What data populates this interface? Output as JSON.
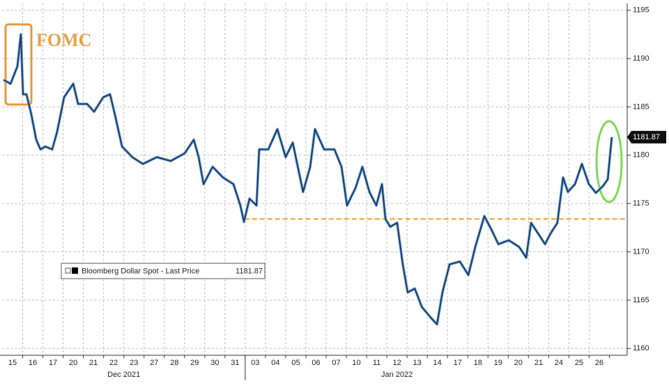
{
  "chart_data": {
    "type": "line",
    "annotation": "FOMC",
    "categories": [
      "15",
      "16",
      "17",
      "20",
      "21",
      "22",
      "23",
      "27",
      "28",
      "29",
      "30",
      "31",
      "03",
      "04",
      "05",
      "06",
      "07",
      "10",
      "11",
      "12",
      "13",
      "14",
      "17",
      "18",
      "19",
      "20",
      "21",
      "24",
      "25",
      "26"
    ],
    "months": [
      "Dec 2021",
      "Jan 2022"
    ],
    "xlim": [
      0,
      30.88
    ],
    "ylim": [
      1159.3,
      1195.7
    ],
    "yticks": [
      1160,
      1165,
      1170,
      1175,
      1180,
      1185,
      1190,
      1195
    ],
    "grid": true,
    "last_price": {
      "value": 1181.87,
      "label": "1181.87"
    },
    "reference_line": {
      "value": 1173.4,
      "from_x": 11.96,
      "color": "#f0a020"
    },
    "series": [
      {
        "name": "Bloomberg Dollar Spot - Last Price",
        "color": "#1c3a66",
        "x": [
          0.05,
          0.4,
          0.74,
          0.91,
          1.02,
          1.19,
          1.43,
          1.67,
          1.88,
          2.12,
          2.46,
          2.7,
          3.05,
          3.5,
          3.74,
          4.19,
          4.53,
          4.98,
          5.32,
          5.56,
          5.91,
          6.42,
          6.94,
          7.63,
          8.32,
          9.01,
          9.46,
          9.7,
          9.94,
          10.39,
          10.9,
          11.42,
          11.76,
          11.94,
          12.21,
          12.56,
          12.69,
          13.14,
          13.59,
          14.0,
          14.35,
          14.86,
          15.21,
          15.45,
          15.9,
          16.41,
          16.76,
          17.03,
          17.45,
          17.79,
          18.14,
          18.48,
          18.76,
          18.93,
          19.17,
          19.51,
          19.79,
          20.03,
          20.38,
          20.73,
          21.17,
          21.48,
          21.75,
          22.1,
          22.61,
          23.03,
          23.37,
          23.82,
          24.17,
          24.51,
          25.03,
          25.54,
          25.89,
          26.13,
          26.57,
          26.82,
          27.09,
          27.43,
          27.71,
          27.95,
          28.3,
          28.64,
          28.99,
          29.33,
          29.68,
          29.92,
          30.12
        ],
        "values": [
          1187.8,
          1187.4,
          1189.2,
          1192.5,
          1186.3,
          1186.3,
          1184.2,
          1181.6,
          1180.6,
          1180.9,
          1180.6,
          1182.4,
          1186.0,
          1187.4,
          1185.3,
          1185.3,
          1184.5,
          1186.0,
          1186.3,
          1184.2,
          1180.9,
          1179.8,
          1179.1,
          1179.8,
          1179.4,
          1180.2,
          1181.6,
          1179.8,
          1177.0,
          1178.8,
          1177.7,
          1177.0,
          1174.8,
          1173.1,
          1175.5,
          1174.8,
          1180.6,
          1180.6,
          1182.7,
          1179.8,
          1181.3,
          1176.2,
          1178.8,
          1182.7,
          1180.6,
          1180.6,
          1178.8,
          1174.8,
          1176.6,
          1178.8,
          1176.2,
          1174.8,
          1177.0,
          1173.4,
          1172.6,
          1173.0,
          1168.7,
          1165.8,
          1166.2,
          1164.3,
          1163.2,
          1162.5,
          1165.8,
          1168.7,
          1169.0,
          1167.6,
          1170.5,
          1173.7,
          1172.3,
          1170.8,
          1171.2,
          1170.5,
          1169.4,
          1173.0,
          1171.6,
          1170.8,
          1171.9,
          1173.0,
          1177.7,
          1176.2,
          1177.0,
          1179.1,
          1177.0,
          1176.1,
          1176.8,
          1177.5,
          1181.87
        ]
      }
    ]
  }
}
